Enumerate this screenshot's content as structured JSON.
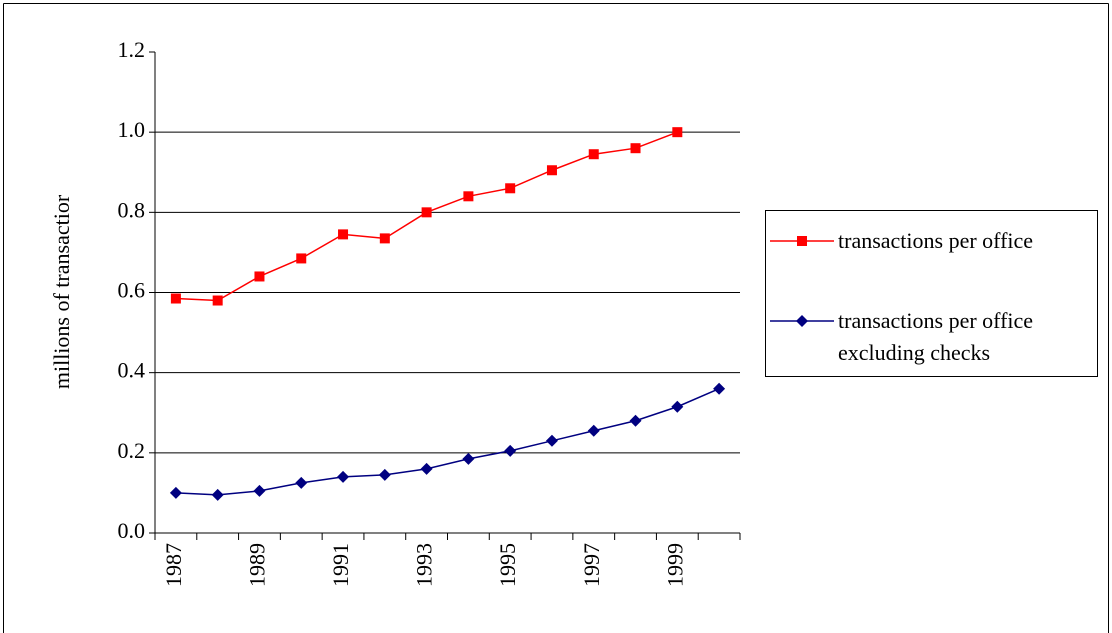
{
  "chart_data": {
    "type": "line",
    "y_label": "millions of transactior",
    "categories": [
      "1987",
      null,
      "1989",
      null,
      "1991",
      null,
      "1993",
      null,
      "1995",
      null,
      "1997",
      null,
      "1999",
      null
    ],
    "series": [
      {
        "name": "transactions per office",
        "color": "#ff0000",
        "marker": "square",
        "values": [
          0.585,
          0.58,
          0.64,
          0.685,
          0.745,
          0.735,
          0.8,
          0.84,
          0.86,
          0.905,
          0.945,
          0.96,
          1.0,
          null
        ]
      },
      {
        "name": "transactions per office excluding checks",
        "color": "#000080",
        "marker": "diamond",
        "values": [
          0.1,
          0.095,
          0.105,
          0.125,
          0.14,
          0.145,
          0.16,
          0.185,
          0.205,
          0.23,
          0.255,
          0.28,
          0.315,
          0.36
        ]
      }
    ],
    "ylim": [
      0,
      1.2
    ],
    "yticks": [
      {
        "value": 0,
        "label": "0.0"
      },
      0.2,
      0.4,
      0.6,
      0.8,
      {
        "value": 1,
        "label": "1.0"
      },
      1.2
    ],
    "grid": true
  }
}
